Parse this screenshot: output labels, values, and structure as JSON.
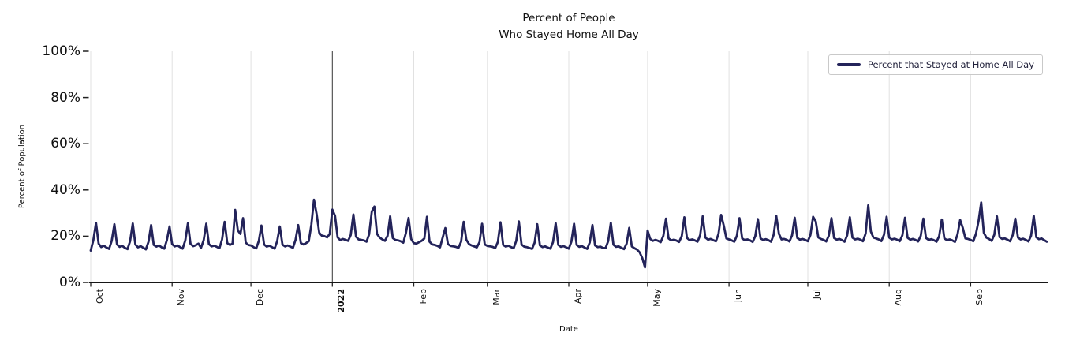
{
  "title": {
    "line1": "Percent of People",
    "line2": "Who Stayed Home All Day"
  },
  "axes": {
    "y_label": "Percent of Population",
    "x_label": "Date",
    "y_ticks": [
      "0%",
      "20%",
      "40%",
      "60%",
      "80%",
      "100%"
    ],
    "x_ticks": [
      {
        "label": "Oct",
        "bold": false
      },
      {
        "label": "Nov",
        "bold": false
      },
      {
        "label": "Dec",
        "bold": false
      },
      {
        "label": "2022",
        "bold": true
      },
      {
        "label": "Feb",
        "bold": false
      },
      {
        "label": "Mar",
        "bold": false
      },
      {
        "label": "Apr",
        "bold": false
      },
      {
        "label": "May",
        "bold": false
      },
      {
        "label": "Jun",
        "bold": false
      },
      {
        "label": "Jul",
        "bold": false
      },
      {
        "label": "Aug",
        "bold": false
      },
      {
        "label": "Sep",
        "bold": false
      }
    ]
  },
  "legend": {
    "label": "Percent that Stayed at Home All Day"
  },
  "colors": {
    "line": "#23235a",
    "grid": "#e1e1e1",
    "year_line": "#3d3d3d",
    "spine": "#161616",
    "tick": "#222222"
  },
  "chart_data": {
    "type": "line",
    "title": "Percent of People Who Stayed Home All Day",
    "xlabel": "Date",
    "ylabel": "Percent of Population",
    "x_start_date": "2021-10-01",
    "x_end_date": "2022-09-30",
    "frequency": "daily",
    "ylim": [
      0,
      100
    ],
    "y_tick_values": [
      0,
      20,
      40,
      60,
      80,
      100
    ],
    "x_tick_positions_days": [
      0,
      31,
      61,
      92,
      123,
      151,
      182,
      212,
      243,
      273,
      304,
      335
    ],
    "x_tick_labels": [
      "Oct",
      "Nov",
      "Dec",
      "2022",
      "Feb",
      "Mar",
      "Apr",
      "May",
      "Jun",
      "Jul",
      "Aug",
      "Sep"
    ],
    "grid": "vertical-only",
    "legend_position": "upper right",
    "annotations": [
      {
        "type": "vline",
        "at_day": 92,
        "meaning": "start of 2022"
      }
    ],
    "series": [
      {
        "name": "Percent that Stayed at Home All Day",
        "color": "#23235a",
        "values": [
          13.8,
          18.2,
          25.8,
          16.8,
          15.3,
          15.9,
          15.1,
          14.5,
          18.0,
          25.2,
          16.5,
          15.4,
          15.8,
          15.0,
          14.4,
          17.8,
          25.5,
          16.4,
          15.2,
          15.7,
          15.0,
          14.3,
          17.6,
          24.8,
          16.2,
          15.5,
          16.0,
          15.2,
          14.6,
          18.4,
          24.2,
          16.6,
          15.6,
          16.0,
          15.3,
          14.6,
          18.2,
          25.6,
          16.7,
          15.7,
          16.1,
          16.8,
          15.0,
          18.3,
          25.4,
          16.6,
          15.6,
          15.9,
          15.4,
          14.8,
          18.6,
          26.2,
          17.0,
          16.2,
          16.8,
          31.4,
          22.5,
          21.0,
          27.8,
          17.2,
          16.2,
          16.0,
          15.3,
          14.7,
          18.0,
          24.6,
          16.4,
          15.5,
          15.9,
          15.3,
          14.6,
          17.9,
          24.2,
          16.3,
          15.6,
          16.0,
          15.5,
          15.0,
          18.5,
          24.8,
          17.0,
          16.4,
          17.0,
          17.8,
          25.0,
          35.8,
          29.5,
          21.5,
          20.2,
          20.0,
          19.5,
          21.0,
          31.5,
          28.8,
          19.5,
          18.3,
          18.8,
          18.4,
          18.0,
          20.5,
          29.4,
          19.8,
          18.6,
          18.4,
          18.2,
          17.6,
          20.8,
          30.6,
          32.8,
          21.0,
          19.4,
          18.6,
          18.0,
          20.2,
          28.6,
          19.2,
          18.4,
          18.2,
          17.8,
          17.2,
          21.5,
          27.9,
          18.8,
          17.0,
          16.8,
          17.4,
          18.0,
          19.0,
          28.4,
          17.6,
          16.4,
          16.2,
          15.8,
          15.2,
          19.5,
          23.5,
          16.6,
          15.8,
          15.6,
          15.4,
          15.0,
          17.6,
          26.2,
          18.5,
          16.6,
          16.0,
          15.6,
          15.2,
          17.4,
          25.4,
          16.4,
          15.8,
          15.6,
          15.4,
          14.9,
          17.5,
          26.0,
          16.2,
          15.5,
          15.9,
          15.3,
          14.8,
          18.0,
          26.4,
          16.4,
          15.5,
          15.3,
          14.9,
          14.5,
          17.2,
          25.2,
          16.0,
          15.3,
          15.6,
          15.1,
          14.6,
          17.4,
          25.6,
          16.2,
          15.4,
          15.7,
          15.2,
          14.6,
          17.6,
          25.4,
          16.2,
          15.4,
          15.7,
          15.1,
          14.5,
          17.3,
          24.8,
          16.0,
          15.3,
          15.5,
          14.9,
          14.8,
          17.8,
          25.8,
          16.3,
          15.4,
          15.6,
          15.0,
          14.4,
          16.8,
          23.6,
          15.6,
          14.8,
          14.2,
          13.0,
          10.5,
          6.5,
          22.5,
          18.8,
          18.0,
          18.4,
          18.0,
          17.4,
          20.2,
          27.6,
          19.0,
          18.2,
          18.5,
          18.1,
          17.5,
          20.0,
          28.2,
          19.2,
          18.3,
          18.6,
          18.2,
          17.6,
          20.4,
          28.6,
          19.4,
          18.5,
          18.8,
          18.3,
          17.8,
          21.0,
          29.2,
          24.5,
          19.0,
          18.6,
          18.2,
          17.6,
          20.2,
          27.8,
          19.0,
          18.3,
          18.6,
          18.2,
          17.5,
          20.0,
          27.4,
          19.0,
          18.4,
          18.7,
          18.3,
          17.6,
          20.6,
          28.8,
          21.0,
          18.6,
          18.8,
          18.4,
          17.7,
          20.3,
          28.0,
          19.2,
          18.5,
          18.8,
          18.4,
          17.8,
          20.5,
          28.4,
          26.5,
          19.5,
          18.8,
          18.4,
          17.7,
          20.2,
          27.8,
          19.2,
          18.5,
          18.8,
          18.3,
          17.6,
          20.4,
          28.2,
          19.4,
          18.6,
          18.9,
          18.5,
          17.8,
          21.2,
          33.4,
          22.0,
          19.4,
          19.0,
          18.6,
          17.9,
          20.6,
          28.4,
          19.4,
          18.6,
          18.9,
          18.5,
          17.8,
          20.4,
          28.0,
          19.3,
          18.5,
          18.8,
          18.4,
          17.7,
          20.2,
          27.6,
          19.2,
          18.4,
          18.7,
          18.3,
          17.6,
          20.0,
          27.2,
          19.0,
          18.3,
          18.6,
          18.2,
          17.5,
          20.8,
          27.0,
          23.5,
          19.0,
          18.8,
          18.4,
          17.8,
          21.0,
          26.5,
          34.6,
          21.5,
          19.4,
          18.8,
          18.0,
          20.6,
          28.6,
          19.6,
          18.8,
          19.0,
          18.5,
          17.8,
          20.4,
          27.6,
          19.4,
          18.6,
          18.9,
          18.4,
          17.7,
          20.2,
          28.8,
          19.5,
          18.7,
          19.0,
          18.3,
          17.6
        ]
      }
    ]
  }
}
